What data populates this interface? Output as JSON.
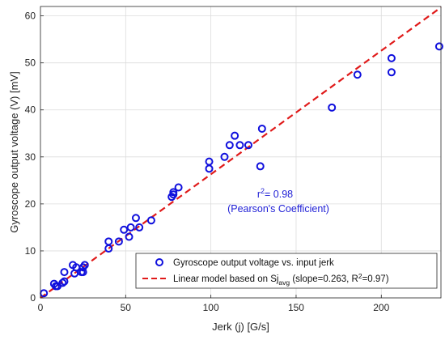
{
  "chart_data": {
    "type": "scatter",
    "xlabel": "Jerk (j) [G/s]",
    "ylabel": "Gyroscope output voltage (V) [mV]",
    "xlim": [
      0,
      235
    ],
    "ylim": [
      0,
      62
    ],
    "xticks": [
      0,
      50,
      100,
      150,
      200
    ],
    "yticks": [
      0,
      10,
      20,
      30,
      40,
      50,
      60
    ],
    "grid": true,
    "legend_position": "bottom-right",
    "colors": {
      "points": "#1010dd",
      "line": "#e01a1a",
      "annotation": "#1f1fd6"
    },
    "annotations": [
      {
        "line1_prefix": "r",
        "line1_sup": "2",
        "line1_suffix": "= 0.98",
        "line2": "(Pearson's Coefficient)"
      }
    ],
    "series": [
      {
        "name": "Gyroscope output voltage vs. input jerk",
        "kind": "scatter",
        "points": [
          [
            2,
            1
          ],
          [
            8,
            3
          ],
          [
            9,
            2.5
          ],
          [
            10,
            2.5
          ],
          [
            13,
            3.2
          ],
          [
            14,
            3.5
          ],
          [
            14,
            5.5
          ],
          [
            19,
            7
          ],
          [
            20,
            5.2
          ],
          [
            21,
            6.5
          ],
          [
            24,
            5.5
          ],
          [
            25,
            6.5
          ],
          [
            25,
            5.5
          ],
          [
            26,
            7
          ],
          [
            40,
            10.5
          ],
          [
            40,
            12
          ],
          [
            46,
            12
          ],
          [
            49,
            14.5
          ],
          [
            52,
            13
          ],
          [
            53,
            15
          ],
          [
            56,
            17
          ],
          [
            58,
            15
          ],
          [
            65,
            16.5
          ],
          [
            77,
            21.5
          ],
          [
            78,
            22
          ],
          [
            78,
            22.5
          ],
          [
            81,
            23.5
          ],
          [
            99,
            27.5
          ],
          [
            99,
            29
          ],
          [
            108,
            30
          ],
          [
            111,
            32.5
          ],
          [
            114,
            34.5
          ],
          [
            117,
            32.5
          ],
          [
            122,
            32.5
          ],
          [
            129,
            28
          ],
          [
            130,
            36
          ],
          [
            171,
            40.5
          ],
          [
            186,
            47.5
          ],
          [
            206,
            48
          ],
          [
            206,
            51
          ],
          [
            234,
            53.5
          ]
        ]
      },
      {
        "name_prefix": "Linear model based on Sj",
        "name_sub": "avg",
        "name_mid": " (slope=0.263, R",
        "name_sup": "2",
        "name_suffix": "=0.97)",
        "kind": "line",
        "slope": 0.263,
        "intercept": 0,
        "x_range": [
          0,
          235
        ]
      }
    ]
  }
}
